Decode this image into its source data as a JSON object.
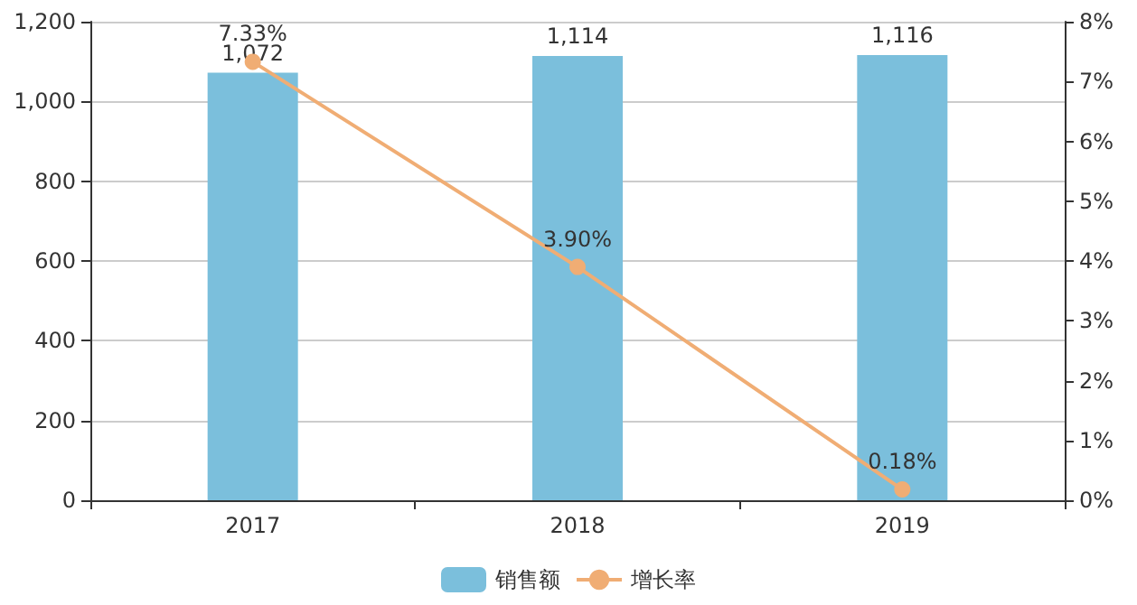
{
  "chart_data": {
    "type": "bar",
    "categories": [
      "2017",
      "2018",
      "2019"
    ],
    "series": [
      {
        "name": "销售额",
        "color": "#7bbfdc",
        "values": [
          1072,
          1114,
          1116
        ],
        "value_labels": [
          "1,072",
          "1,114",
          "1,116"
        ]
      },
      {
        "name": "增长率",
        "type": "line",
        "axis": "y2",
        "color": "#f0ad74",
        "values": [
          7.33,
          3.9,
          0.18
        ],
        "value_labels": [
          "7.33%",
          "3.90%",
          "0.18%"
        ]
      }
    ],
    "ylim": [
      0,
      1200
    ],
    "yticks": [
      0,
      200,
      400,
      600,
      800,
      {
        "value": 1000,
        "label": "1,000"
      },
      {
        "value": 1200,
        "label": "1,200"
      }
    ],
    "y2lim": [
      0,
      8
    ],
    "y2ticks": [
      {
        "value": 0,
        "label": "0%"
      },
      {
        "value": 1,
        "label": "1%"
      },
      {
        "value": 2,
        "label": "2%"
      },
      {
        "value": 3,
        "label": "3%"
      },
      {
        "value": 4,
        "label": "4%"
      },
      {
        "value": 5,
        "label": "5%"
      },
      {
        "value": 6,
        "label": "6%"
      },
      {
        "value": 7,
        "label": "7%"
      },
      {
        "value": 8,
        "label": "8%"
      }
    ],
    "grid": "y",
    "legend": "bottom",
    "marker": "circle"
  }
}
